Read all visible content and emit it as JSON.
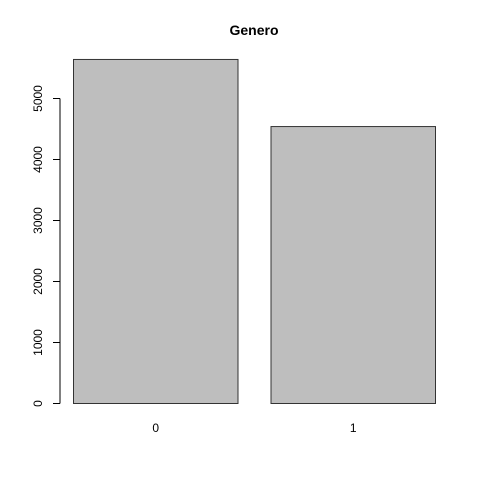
{
  "chart_data": {
    "type": "bar",
    "title": "Genero",
    "xlabel": "",
    "ylabel": "",
    "categories": [
      "0",
      "1"
    ],
    "values": [
      5640,
      4540
    ],
    "ylim": [
      0,
      5640
    ],
    "yticks": [
      0,
      1000,
      2000,
      3000,
      4000,
      5000
    ],
    "bar_fill": "#bebebe",
    "bar_stroke": "#333333",
    "grid": false,
    "legend": "none"
  }
}
